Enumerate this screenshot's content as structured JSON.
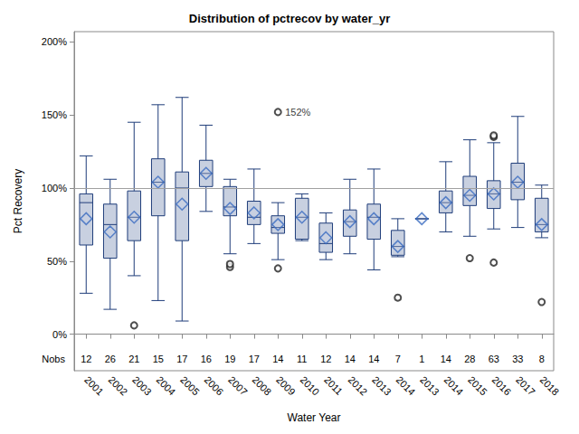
{
  "chart_data": {
    "type": "boxplot",
    "title": "Distribution of pctrecov by water_yr",
    "x_label": "Water Year",
    "y_label": "Pct Recovery",
    "categories": [
      "2001",
      "2002",
      "2003",
      "2004",
      "2005",
      "2006",
      "2007",
      "2008",
      "2009",
      "2010",
      "2011",
      "2012",
      "2013",
      "2014",
      "2013",
      "2014",
      "2015",
      "2016",
      "2017",
      "2018"
    ],
    "boxes": [
      [
        28,
        61,
        90,
        96,
        122
      ],
      [
        17,
        52,
        75,
        89,
        106
      ],
      [
        40,
        64,
        80,
        98,
        145
      ],
      [
        23,
        81,
        104,
        120,
        157
      ],
      [
        9,
        64,
        100,
        111,
        162
      ],
      [
        84,
        101,
        110,
        119,
        143
      ],
      [
        55,
        81,
        87,
        101,
        106
      ],
      [
        62,
        75,
        80,
        91,
        113
      ],
      [
        51,
        69,
        73,
        81,
        90
      ],
      [
        64,
        65,
        80,
        93,
        96
      ],
      [
        51,
        56,
        62,
        76,
        83
      ],
      [
        55,
        67,
        77,
        85,
        106
      ],
      [
        44,
        65,
        80,
        89,
        113
      ],
      [
        53,
        54,
        60,
        71,
        79
      ],
      [
        79,
        79,
        79,
        79,
        79
      ],
      [
        70,
        83,
        90,
        98,
        118
      ],
      [
        67,
        88,
        95,
        108,
        133
      ],
      [
        72,
        86,
        96,
        105,
        131
      ],
      [
        73,
        92,
        104,
        117,
        149
      ],
      [
        66,
        70,
        75,
        93,
        102
      ]
    ],
    "means": [
      79,
      70,
      80,
      104,
      89,
      110,
      86,
      83,
      75,
      80,
      66,
      77,
      79,
      60,
      79,
      90,
      95,
      96,
      104,
      75
    ],
    "outliers": [
      [],
      [],
      [
        6
      ],
      [],
      [],
      [],
      [
        46,
        48
      ],
      [],
      [
        152,
        45
      ],
      [],
      [],
      [],
      [],
      [
        25
      ],
      [],
      [],
      [
        52
      ],
      [
        135,
        136,
        49
      ],
      [],
      [
        22
      ]
    ],
    "count_label": "Nobs",
    "nobs": [
      12,
      26,
      21,
      15,
      17,
      16,
      19,
      17,
      14,
      11,
      12,
      14,
      14,
      7,
      1,
      14,
      28,
      63,
      33,
      8
    ],
    "annotations": [
      {
        "category": "2009",
        "value": 152,
        "text": "152%"
      }
    ],
    "reference_line": 100,
    "ylim": [
      -25,
      207
    ],
    "yticks": [
      {
        "value": 0,
        "label": "0%"
      },
      {
        "value": 50,
        "label": "50%"
      },
      {
        "value": 100,
        "label": "100%"
      },
      {
        "value": 150,
        "label": "150%"
      },
      {
        "value": 200,
        "label": "200%"
      }
    ],
    "grid": false,
    "color": "#c8d0e0"
  }
}
